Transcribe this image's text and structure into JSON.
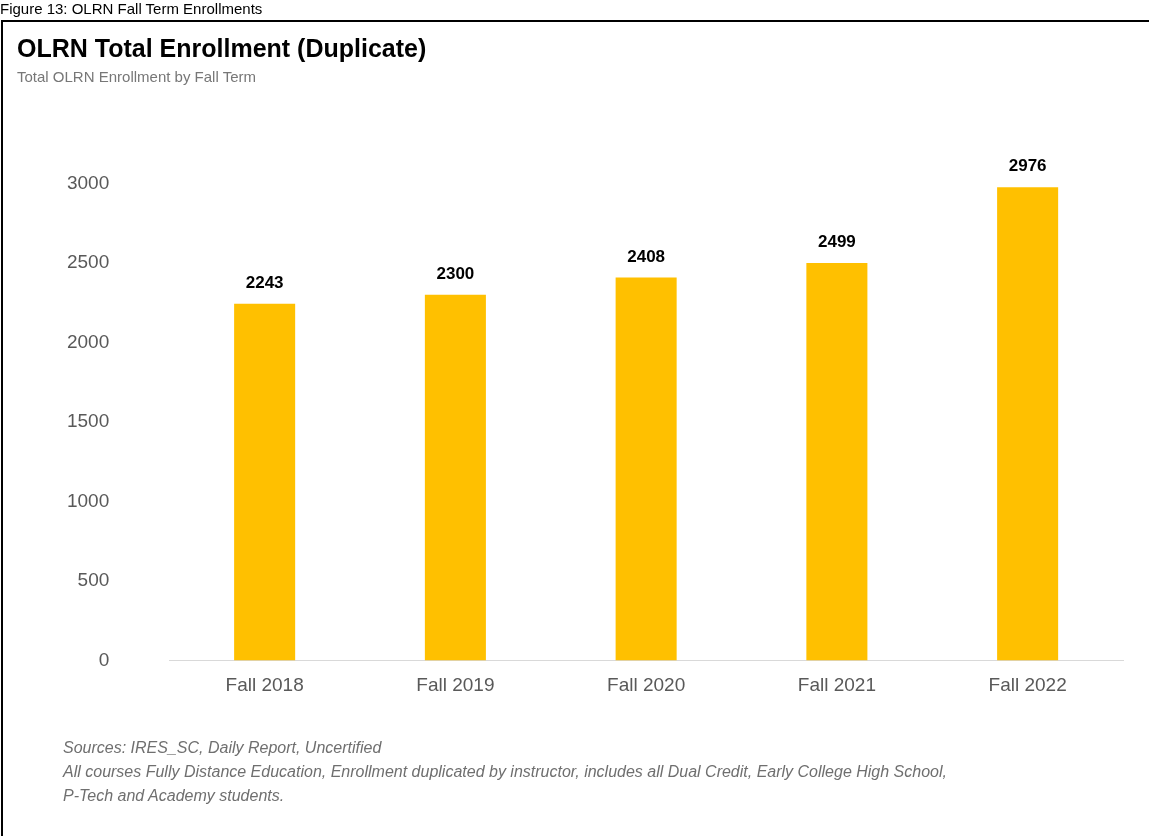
{
  "chart_data": {
    "type": "bar",
    "title": "OLRN Total Enrollment (Duplicate)",
    "subtitle": "Total OLRN Enrollment by Fall Term",
    "categories": [
      "Fall 2018",
      "Fall 2019",
      "Fall 2020",
      "Fall 2021",
      "Fall 2022"
    ],
    "values": [
      2243,
      2300,
      2408,
      2499,
      2976
    ],
    "color": "#ffc000",
    "ylim": [
      0,
      3000
    ],
    "yticks": [
      0,
      500,
      1000,
      1500,
      2000,
      2500,
      3000
    ],
    "grid": false,
    "legend": false,
    "data_labels": true,
    "annotations": [
      "Figure 13: OLRN Fall Term Enrollments",
      "Sources: IRES_SC, Daily Report, Uncertified",
      "All courses Fully Distance Education, Enrollment duplicated by instructor, includes all Dual Credit, Early College High School, P-Tech and Academy students."
    ]
  }
}
